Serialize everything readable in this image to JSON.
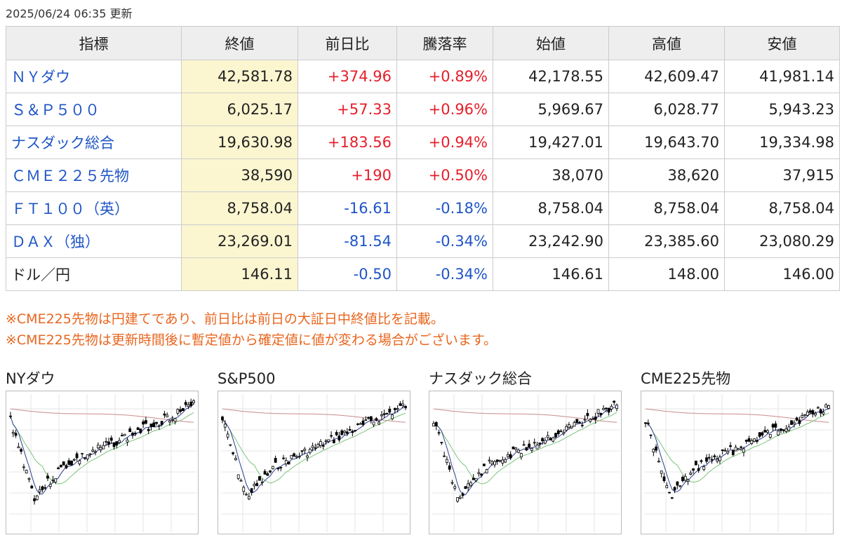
{
  "updated": "2025/06/24 06:35 更新",
  "table": {
    "headers": [
      "指標",
      "終値",
      "前日比",
      "騰落率",
      "始値",
      "高値",
      "安値"
    ],
    "rows": [
      {
        "name": "ＮＹダウ",
        "link": true,
        "close": "42,581.78",
        "change": "+374.96",
        "rate": "+0.89%",
        "dir": "up",
        "open": "42,178.55",
        "high": "42,609.47",
        "low": "41,981.14"
      },
      {
        "name": "Ｓ＆Ｐ５００",
        "link": true,
        "close": "6,025.17",
        "change": "+57.33",
        "rate": "+0.96%",
        "dir": "up",
        "open": "5,969.67",
        "high": "6,028.77",
        "low": "5,943.23"
      },
      {
        "name": "ナスダック総合",
        "link": true,
        "close": "19,630.98",
        "change": "+183.56",
        "rate": "+0.94%",
        "dir": "up",
        "open": "19,427.01",
        "high": "19,643.70",
        "low": "19,334.98"
      },
      {
        "name": "ＣＭＥ２２５先物",
        "link": true,
        "close": "38,590",
        "change": "+190",
        "rate": "+0.50%",
        "dir": "up",
        "open": "38,070",
        "high": "38,620",
        "low": "37,915"
      },
      {
        "name": "ＦＴ１００（英）",
        "link": true,
        "close": "8,758.04",
        "change": "-16.61",
        "rate": "-0.18%",
        "dir": "down",
        "open": "8,758.04",
        "high": "8,758.04",
        "low": "8,758.04"
      },
      {
        "name": "ＤＡＸ（独）",
        "link": true,
        "close": "23,269.01",
        "change": "-81.54",
        "rate": "-0.34%",
        "dir": "down",
        "open": "23,242.90",
        "high": "23,385.60",
        "low": "23,080.29"
      },
      {
        "name": "ドル／円",
        "link": false,
        "close": "146.11",
        "change": "-0.50",
        "rate": "-0.34%",
        "dir": "down",
        "open": "146.61",
        "high": "148.00",
        "low": "146.00"
      }
    ]
  },
  "notes": [
    "※CME225先物は円建てであり、前日比は前日の大証日中終値比を記載。",
    "※CME225先物は更新時間後に暫定値から確定値に値が変わる場合がございます。"
  ],
  "charts": [
    {
      "title": "NYダウ",
      "seed": 3
    },
    {
      "title": "S&P500",
      "seed": 7
    },
    {
      "title": "ナスダック総合",
      "seed": 11
    },
    {
      "title": "CME225先物",
      "seed": 17
    }
  ],
  "colors": {
    "up": "#e61e2a",
    "down": "#1f55c6",
    "link": "#1f55c6",
    "note": "#e8661f",
    "close_bg": "#fbf6d0",
    "ma_short": "#2b3f8f",
    "ma_mid": "#7cc47c",
    "ma_long": "#c98a8a"
  }
}
